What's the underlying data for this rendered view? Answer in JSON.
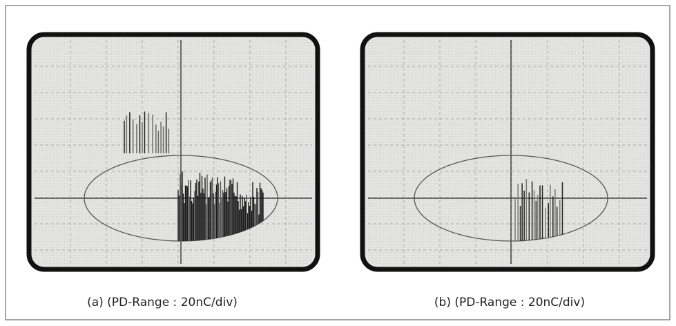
{
  "panels": [
    {
      "caption": "(a) (PD-Range : 20nC/div)"
    },
    {
      "caption": "(b) (PD-Range : 20nC/div)"
    }
  ]
}
